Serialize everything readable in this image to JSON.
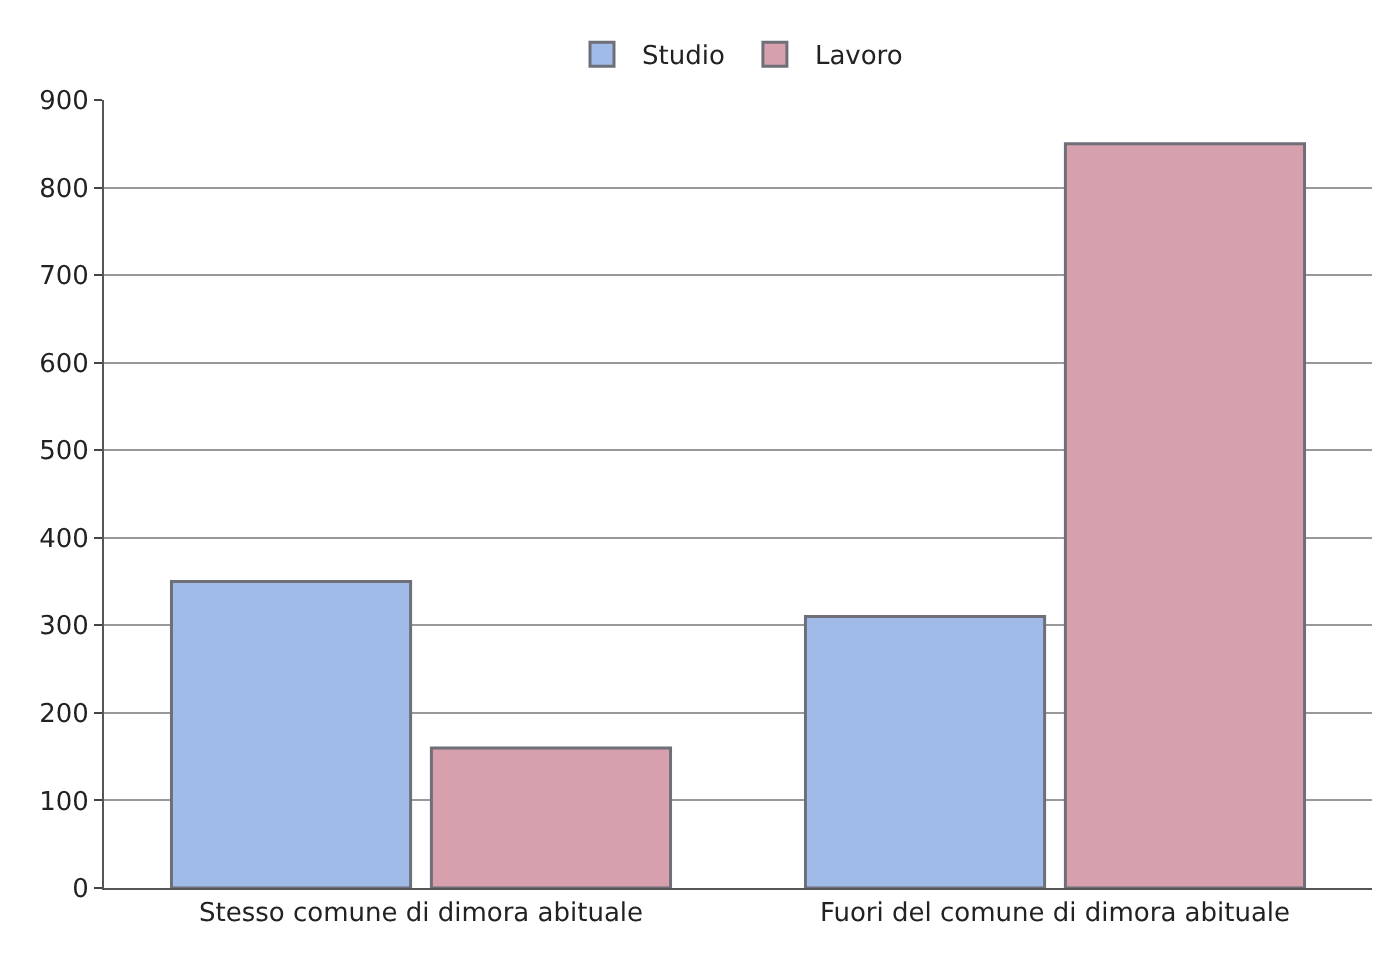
{
  "chart_data": {
    "type": "bar",
    "categories": [
      "Stesso comune di dimora abituale",
      "Fuori del comune di dimora abituale"
    ],
    "series": [
      {
        "name": "Studio",
        "color": "#a0bbe8",
        "values": [
          350,
          310
        ]
      },
      {
        "name": "Lavoro",
        "color": "#d6a0ac",
        "values": [
          160,
          850
        ]
      }
    ],
    "ylim": [
      0,
      900
    ],
    "yticks": [
      0,
      100,
      200,
      300,
      400,
      500,
      600,
      700,
      800,
      900
    ],
    "grid": "y",
    "legend": "top"
  }
}
